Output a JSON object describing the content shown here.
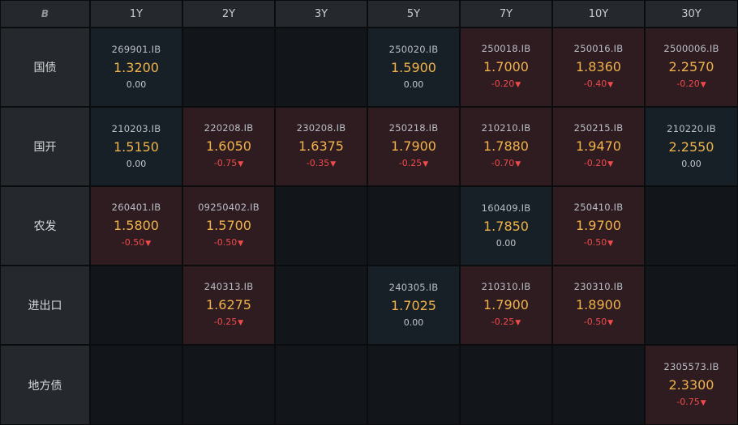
{
  "corner_icon": "brand-logo-icon",
  "corner_label": "B",
  "colors": {
    "yield": "#f0b24a",
    "negative_change": "#f04a4a",
    "neutral_cell": "#182027",
    "down_cell": "#2f1c21"
  },
  "tenors": [
    "1Y",
    "2Y",
    "3Y",
    "5Y",
    "7Y",
    "10Y",
    "30Y"
  ],
  "rows": [
    {
      "label": "国债",
      "cells": [
        {
          "code": "269901.IB",
          "yield": "1.3200",
          "change": "0.00",
          "dir": "flat"
        },
        null,
        null,
        {
          "code": "250020.IB",
          "yield": "1.5900",
          "change": "0.00",
          "dir": "flat"
        },
        {
          "code": "250018.IB",
          "yield": "1.7000",
          "change": "-0.20",
          "dir": "down"
        },
        {
          "code": "250016.IB",
          "yield": "1.8360",
          "change": "-0.40",
          "dir": "down"
        },
        {
          "code": "2500006.IB",
          "yield": "2.2570",
          "change": "-0.20",
          "dir": "down"
        }
      ]
    },
    {
      "label": "国开",
      "cells": [
        {
          "code": "210203.IB",
          "yield": "1.5150",
          "change": "0.00",
          "dir": "flat"
        },
        {
          "code": "220208.IB",
          "yield": "1.6050",
          "change": "-0.75",
          "dir": "down"
        },
        {
          "code": "230208.IB",
          "yield": "1.6375",
          "change": "-0.35",
          "dir": "down"
        },
        {
          "code": "250218.IB",
          "yield": "1.7900",
          "change": "-0.25",
          "dir": "down"
        },
        {
          "code": "210210.IB",
          "yield": "1.7880",
          "change": "-0.70",
          "dir": "down"
        },
        {
          "code": "250215.IB",
          "yield": "1.9470",
          "change": "-0.20",
          "dir": "down"
        },
        {
          "code": "210220.IB",
          "yield": "2.2550",
          "change": "0.00",
          "dir": "flat"
        }
      ]
    },
    {
      "label": "农发",
      "cells": [
        {
          "code": "260401.IB",
          "yield": "1.5800",
          "change": "-0.50",
          "dir": "down"
        },
        {
          "code": "09250402.IB",
          "yield": "1.5700",
          "change": "-0.50",
          "dir": "down"
        },
        null,
        null,
        {
          "code": "160409.IB",
          "yield": "1.7850",
          "change": "0.00",
          "dir": "flat"
        },
        {
          "code": "250410.IB",
          "yield": "1.9700",
          "change": "-0.50",
          "dir": "down"
        },
        null
      ]
    },
    {
      "label": "进出口",
      "cells": [
        null,
        {
          "code": "240313.IB",
          "yield": "1.6275",
          "change": "-0.25",
          "dir": "down"
        },
        null,
        {
          "code": "240305.IB",
          "yield": "1.7025",
          "change": "0.00",
          "dir": "flat"
        },
        {
          "code": "210310.IB",
          "yield": "1.7900",
          "change": "-0.25",
          "dir": "down"
        },
        {
          "code": "230310.IB",
          "yield": "1.8900",
          "change": "-0.50",
          "dir": "down"
        },
        null
      ]
    },
    {
      "label": "地方债",
      "cells": [
        null,
        null,
        null,
        null,
        null,
        null,
        {
          "code": "2305573.IB",
          "yield": "2.3300",
          "change": "-0.75",
          "dir": "down"
        }
      ]
    }
  ]
}
